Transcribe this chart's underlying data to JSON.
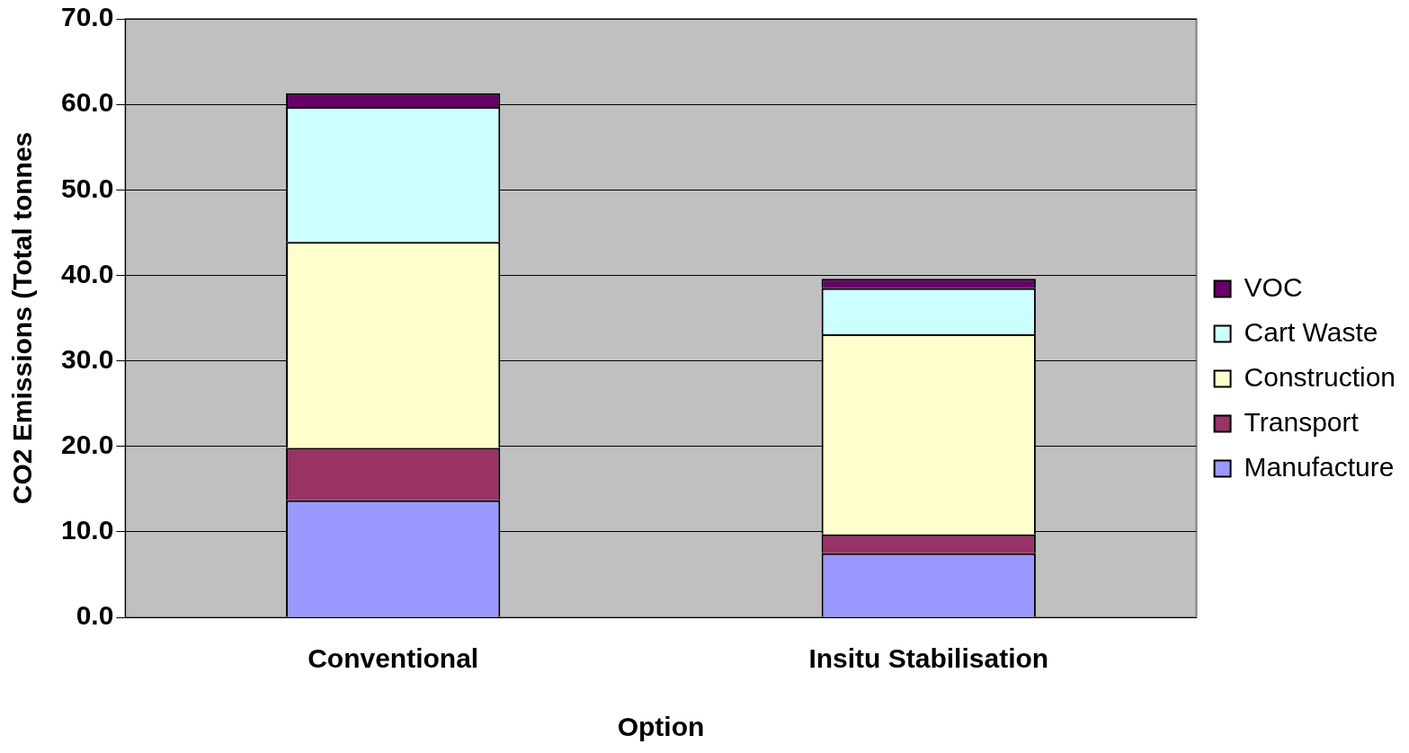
{
  "chart_data": {
    "type": "bar",
    "stacked": true,
    "xlabel": "Option",
    "ylabel": "CO2 Emissions (Total tonnes",
    "categories": [
      "Conventional",
      "Insitu Stabilisation"
    ],
    "series": [
      {
        "name": "Manufacture",
        "color": "#9999ff",
        "values": [
          13.7,
          7.5
        ]
      },
      {
        "name": "Transport",
        "color": "#993366",
        "values": [
          6.1,
          2.2
        ]
      },
      {
        "name": "Construction",
        "color": "#ffffcc",
        "values": [
          24.1,
          23.4
        ]
      },
      {
        "name": "Cart Waste",
        "color": "#ccffff",
        "values": [
          15.8,
          5.4
        ]
      },
      {
        "name": "VOC",
        "color": "#660066",
        "values": [
          1.6,
          1.1
        ]
      }
    ],
    "ylim": [
      0,
      70
    ],
    "yticks": [
      {
        "value": 0,
        "label": "0.0"
      },
      {
        "value": 10,
        "label": "10.0"
      },
      {
        "value": 20,
        "label": "20.0"
      },
      {
        "value": 30,
        "label": "30.0"
      },
      {
        "value": 40,
        "label": "40.0"
      },
      {
        "value": 50,
        "label": "50.0"
      },
      {
        "value": 60,
        "label": "60.0"
      },
      {
        "value": 70,
        "label": "70.0"
      }
    ],
    "grid": "y",
    "legend": "right"
  }
}
